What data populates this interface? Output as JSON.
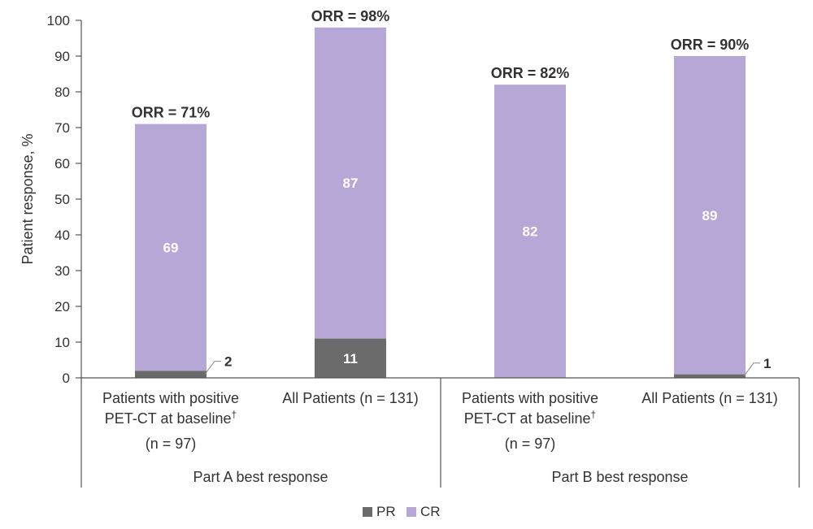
{
  "chart_data": {
    "type": "bar",
    "stacked": true,
    "ylabel": "Patient response, %",
    "ylim": [
      0,
      100
    ],
    "yticks": [
      0,
      10,
      20,
      30,
      40,
      50,
      60,
      70,
      80,
      90,
      100
    ],
    "colors": {
      "PR": "#6b6b6b",
      "CR": "#b7a7d6",
      "axis": "#555555"
    },
    "groups": [
      {
        "label": "Part A best response",
        "category_indices": [
          0,
          1
        ]
      },
      {
        "label": "Part B best response",
        "category_indices": [
          2,
          3
        ]
      }
    ],
    "categories": [
      {
        "lines": [
          "Patients with positive",
          "PET-CT at baseline",
          "(n = 97)"
        ],
        "superscript": "†"
      },
      {
        "lines": [
          "All Patients (n = 131)"
        ],
        "superscript": ""
      },
      {
        "lines": [
          "Patients with positive",
          "PET-CT at baseline",
          "(n = 97)"
        ],
        "superscript": "†"
      },
      {
        "lines": [
          "All Patients (n = 131)"
        ],
        "superscript": ""
      }
    ],
    "series": [
      {
        "name": "PR",
        "values": [
          2,
          11,
          0,
          1
        ],
        "labels": [
          "2",
          "11",
          "",
          "1"
        ],
        "label_style": [
          "callout",
          "inside",
          "none",
          "callout"
        ]
      },
      {
        "name": "CR",
        "values": [
          69,
          87,
          82,
          89
        ],
        "labels": [
          "69",
          "87",
          "82",
          "89"
        ],
        "label_style": [
          "inside",
          "inside",
          "inside",
          "inside"
        ]
      }
    ],
    "totals": [
      71,
      98,
      82,
      90
    ],
    "total_labels": [
      "ORR = 71%",
      "ORR = 98%",
      "ORR = 82%",
      "ORR = 90%"
    ],
    "legend": {
      "position": "bottom-center",
      "entries": [
        "PR",
        "CR"
      ]
    }
  }
}
